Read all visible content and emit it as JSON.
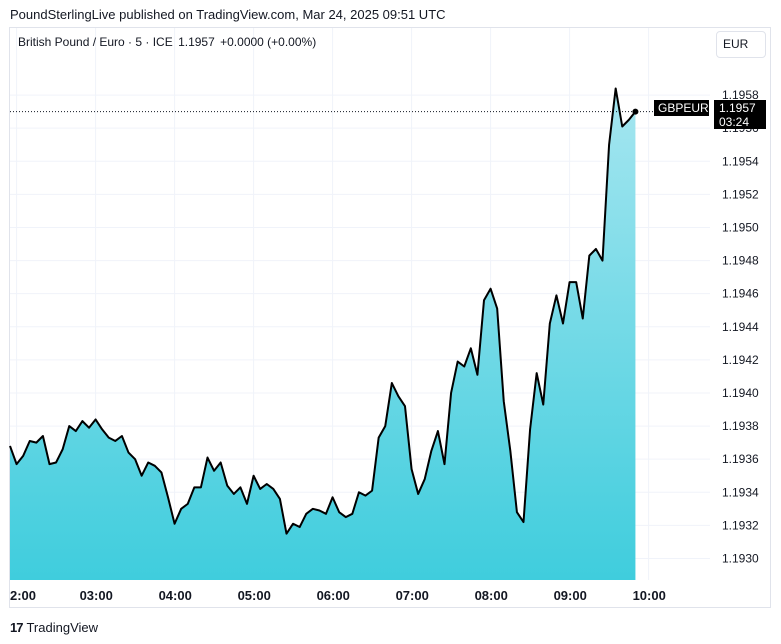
{
  "header": {
    "publisher_line": "PoundSterlingLive published on TradingView.com, Mar 24, 2025 09:51 UTC"
  },
  "legend": {
    "symbol": "British Pound / Euro · 5 · ICE",
    "last": "1.1957",
    "change": "+0.0000 (+0.00%)"
  },
  "currency_button": "EUR",
  "price_label": {
    "ticker": "GBPEUR",
    "price": "1.1957",
    "countdown": "03:24"
  },
  "footer": {
    "brand": "TradingView",
    "logo_glyph": "17"
  },
  "colors": {
    "line": "#000000",
    "fill_top": "#a6e6f0",
    "fill_bottom": "#3fcddd",
    "label_bg": "#000000"
  },
  "chart_data": {
    "type": "area",
    "title": "British Pound / Euro · 5 · ICE",
    "xlabel": "",
    "ylabel": "",
    "x_tick_labels": [
      "2:00",
      "03:00",
      "04:00",
      "05:00",
      "06:00",
      "07:00",
      "08:00",
      "09:00",
      "10:00"
    ],
    "y_tick_labels": [
      "1.1930",
      "1.1932",
      "1.1934",
      "1.1936",
      "1.1938",
      "1.1940",
      "1.1942",
      "1.1944",
      "1.1946",
      "1.1948",
      "1.1950",
      "1.1952",
      "1.1954",
      "1.1956",
      "1.1958"
    ],
    "ylim": [
      1.19287,
      1.19603
    ],
    "x_start_time": "01:55",
    "interval_minutes": 5,
    "series": [
      {
        "values": [
          1.19368,
          1.19357,
          1.19362,
          1.19371,
          1.1937,
          1.19374,
          1.19357,
          1.19358,
          1.19366,
          1.1938,
          1.19377,
          1.19383,
          1.19379,
          1.19384,
          1.19378,
          1.19373,
          1.19371,
          1.19374,
          1.19364,
          1.1936,
          1.1935,
          1.19358,
          1.19356,
          1.19352,
          1.19337,
          1.19321,
          1.1933,
          1.19333,
          1.19343,
          1.19343,
          1.19361,
          1.19353,
          1.19358,
          1.19344,
          1.19339,
          1.19343,
          1.19333,
          1.1935,
          1.19342,
          1.19345,
          1.19342,
          1.19336,
          1.19315,
          1.19321,
          1.19319,
          1.19327,
          1.1933,
          1.19329,
          1.19327,
          1.19337,
          1.19328,
          1.19325,
          1.19327,
          1.1934,
          1.19338,
          1.19341,
          1.19373,
          1.1938,
          1.19406,
          1.19398,
          1.19392,
          1.19354,
          1.19339,
          1.19348,
          1.19365,
          1.19377,
          1.19357,
          1.194,
          1.19419,
          1.19416,
          1.19427,
          1.19411,
          1.19456,
          1.19463,
          1.19451,
          1.19395,
          1.19365,
          1.19328,
          1.19322,
          1.19378,
          1.19412,
          1.19393,
          1.19442,
          1.19459,
          1.19442,
          1.19467,
          1.19467,
          1.19445,
          1.19483,
          1.19487,
          1.1948,
          1.1955,
          1.19584,
          1.19561,
          1.19565,
          1.1957
        ]
      }
    ]
  }
}
